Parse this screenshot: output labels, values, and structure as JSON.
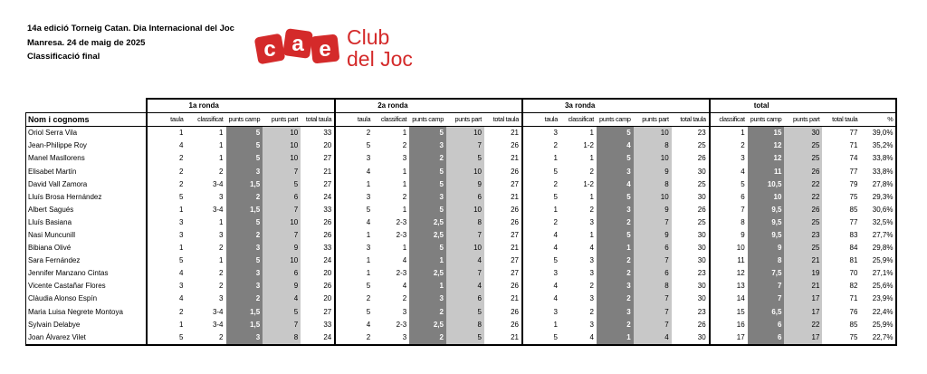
{
  "header": {
    "line1": "14a edició Torneig Catan. Dia Internacional del Joc",
    "line2": "Manresa. 24 de maig de 2025",
    "line3": "Classificació final"
  },
  "logo": {
    "letters": "cae",
    "line1": "Club",
    "line2": "del Joc",
    "color": "#d42a2a"
  },
  "table": {
    "groups": [
      "1a ronda",
      "2a ronda",
      "3a ronda",
      "total"
    ],
    "name_header": "Nom i cognoms",
    "round_columns": [
      "taula",
      "classificat",
      "punts camp",
      "punts part",
      "total taula"
    ],
    "total_columns": [
      "classificat",
      "punts camp",
      "punts part",
      "total taula",
      "%"
    ],
    "rows": [
      {
        "name": "Oriol Serra Vila",
        "r": [
          [
            "1",
            "1",
            "5",
            "10",
            "33"
          ],
          [
            "2",
            "1",
            "5",
            "10",
            "21"
          ],
          [
            "3",
            "1",
            "5",
            "10",
            "23"
          ]
        ],
        "t": [
          "1",
          "15",
          "30",
          "77",
          "39,0%"
        ]
      },
      {
        "name": "Jean-Philippe Roy",
        "r": [
          [
            "4",
            "1",
            "5",
            "10",
            "20"
          ],
          [
            "5",
            "2",
            "3",
            "7",
            "26"
          ],
          [
            "2",
            "1-2",
            "4",
            "8",
            "25"
          ]
        ],
        "t": [
          "2",
          "12",
          "25",
          "71",
          "35,2%"
        ]
      },
      {
        "name": "Manel Masllorens",
        "r": [
          [
            "2",
            "1",
            "5",
            "10",
            "27"
          ],
          [
            "3",
            "3",
            "2",
            "5",
            "21"
          ],
          [
            "1",
            "1",
            "5",
            "10",
            "26"
          ]
        ],
        "t": [
          "3",
          "12",
          "25",
          "74",
          "33,8%"
        ]
      },
      {
        "name": "Elisabet Martín",
        "r": [
          [
            "2",
            "2",
            "3",
            "7",
            "21"
          ],
          [
            "4",
            "1",
            "5",
            "10",
            "26"
          ],
          [
            "5",
            "2",
            "3",
            "9",
            "30"
          ]
        ],
        "t": [
          "4",
          "11",
          "26",
          "77",
          "33,8%"
        ]
      },
      {
        "name": "David Vall Zamora",
        "r": [
          [
            "2",
            "3-4",
            "1,5",
            "5",
            "27"
          ],
          [
            "1",
            "1",
            "5",
            "9",
            "27"
          ],
          [
            "2",
            "1-2",
            "4",
            "8",
            "25"
          ]
        ],
        "t": [
          "5",
          "10,5",
          "22",
          "79",
          "27,8%"
        ]
      },
      {
        "name": "Lluís Brosa Hernández",
        "r": [
          [
            "5",
            "3",
            "2",
            "6",
            "24"
          ],
          [
            "3",
            "2",
            "3",
            "6",
            "21"
          ],
          [
            "5",
            "1",
            "5",
            "10",
            "30"
          ]
        ],
        "t": [
          "6",
          "10",
          "22",
          "75",
          "29,3%"
        ]
      },
      {
        "name": "Albert Sagués",
        "r": [
          [
            "1",
            "3-4",
            "1,5",
            "7",
            "33"
          ],
          [
            "5",
            "1",
            "5",
            "10",
            "26"
          ],
          [
            "1",
            "2",
            "3",
            "9",
            "26"
          ]
        ],
        "t": [
          "7",
          "9,5",
          "26",
          "85",
          "30,6%"
        ]
      },
      {
        "name": "Lluís Basiana",
        "r": [
          [
            "3",
            "1",
            "5",
            "10",
            "26"
          ],
          [
            "4",
            "2-3",
            "2,5",
            "8",
            "26"
          ],
          [
            "2",
            "3",
            "2",
            "7",
            "25"
          ]
        ],
        "t": [
          "8",
          "9,5",
          "25",
          "77",
          "32,5%"
        ]
      },
      {
        "name": "Nasi Muncunill",
        "r": [
          [
            "3",
            "3",
            "2",
            "7",
            "26"
          ],
          [
            "1",
            "2-3",
            "2,5",
            "7",
            "27"
          ],
          [
            "4",
            "1",
            "5",
            "9",
            "30"
          ]
        ],
        "t": [
          "9",
          "9,5",
          "23",
          "83",
          "27,7%"
        ]
      },
      {
        "name": "Bibiana Olivé",
        "r": [
          [
            "1",
            "2",
            "3",
            "9",
            "33"
          ],
          [
            "3",
            "1",
            "5",
            "10",
            "21"
          ],
          [
            "4",
            "4",
            "1",
            "6",
            "30"
          ]
        ],
        "t": [
          "10",
          "9",
          "25",
          "84",
          "29,8%"
        ]
      },
      {
        "name": "Sara Fernández",
        "r": [
          [
            "5",
            "1",
            "5",
            "10",
            "24"
          ],
          [
            "1",
            "4",
            "1",
            "4",
            "27"
          ],
          [
            "5",
            "3",
            "2",
            "7",
            "30"
          ]
        ],
        "t": [
          "11",
          "8",
          "21",
          "81",
          "25,9%"
        ]
      },
      {
        "name": "Jennifer Manzano Cintas",
        "r": [
          [
            "4",
            "2",
            "3",
            "6",
            "20"
          ],
          [
            "1",
            "2-3",
            "2,5",
            "7",
            "27"
          ],
          [
            "3",
            "3",
            "2",
            "6",
            "23"
          ]
        ],
        "t": [
          "12",
          "7,5",
          "19",
          "70",
          "27,1%"
        ]
      },
      {
        "name": "Vicente Castañar Flores",
        "r": [
          [
            "3",
            "2",
            "3",
            "9",
            "26"
          ],
          [
            "5",
            "4",
            "1",
            "4",
            "26"
          ],
          [
            "4",
            "2",
            "3",
            "8",
            "30"
          ]
        ],
        "t": [
          "13",
          "7",
          "21",
          "82",
          "25,6%"
        ]
      },
      {
        "name": "Clàudia Alonso Espín",
        "r": [
          [
            "4",
            "3",
            "2",
            "4",
            "20"
          ],
          [
            "2",
            "2",
            "3",
            "6",
            "21"
          ],
          [
            "4",
            "3",
            "2",
            "7",
            "30"
          ]
        ],
        "t": [
          "14",
          "7",
          "17",
          "71",
          "23,9%"
        ]
      },
      {
        "name": "Maria Luisa Negrete Montoya",
        "r": [
          [
            "2",
            "3-4",
            "1,5",
            "5",
            "27"
          ],
          [
            "5",
            "3",
            "2",
            "5",
            "26"
          ],
          [
            "3",
            "2",
            "3",
            "7",
            "23"
          ]
        ],
        "t": [
          "15",
          "6,5",
          "17",
          "76",
          "22,4%"
        ]
      },
      {
        "name": "Sylvain Delabye",
        "r": [
          [
            "1",
            "3-4",
            "1,5",
            "7",
            "33"
          ],
          [
            "4",
            "2-3",
            "2,5",
            "8",
            "26"
          ],
          [
            "1",
            "3",
            "2",
            "7",
            "26"
          ]
        ],
        "t": [
          "16",
          "6",
          "22",
          "85",
          "25,9%"
        ]
      },
      {
        "name": "Joan Álvarez Vilet",
        "r": [
          [
            "5",
            "2",
            "3",
            "8",
            "24"
          ],
          [
            "2",
            "3",
            "2",
            "5",
            "21"
          ],
          [
            "5",
            "4",
            "1",
            "4",
            "30"
          ]
        ],
        "t": [
          "17",
          "6",
          "17",
          "75",
          "22,7%"
        ]
      }
    ]
  }
}
